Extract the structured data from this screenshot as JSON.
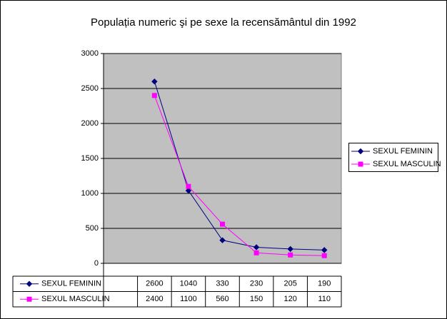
{
  "chart_data": {
    "type": "line",
    "title": "Populația numeric şi pe sexe la recensământul din 1992",
    "categories": [
      null,
      null,
      null,
      null,
      null,
      null,
      null
    ],
    "series": [
      {
        "name": "SEXUL FEMININ",
        "color": "#000080",
        "marker": "diamond",
        "values": [
          null,
          2600,
          1040,
          330,
          230,
          205,
          190
        ]
      },
      {
        "name": "SEXUL MASCULIN",
        "color": "#ff00ff",
        "marker": "square",
        "values": [
          null,
          2400,
          1100,
          560,
          150,
          120,
          110
        ]
      }
    ],
    "ylim": [
      0,
      3000
    ],
    "yticks": [
      0,
      500,
      1000,
      1500,
      2000,
      2500,
      3000
    ],
    "grid": true,
    "legend": "right",
    "plot_background": "#c0c0c0",
    "data_table": true
  }
}
